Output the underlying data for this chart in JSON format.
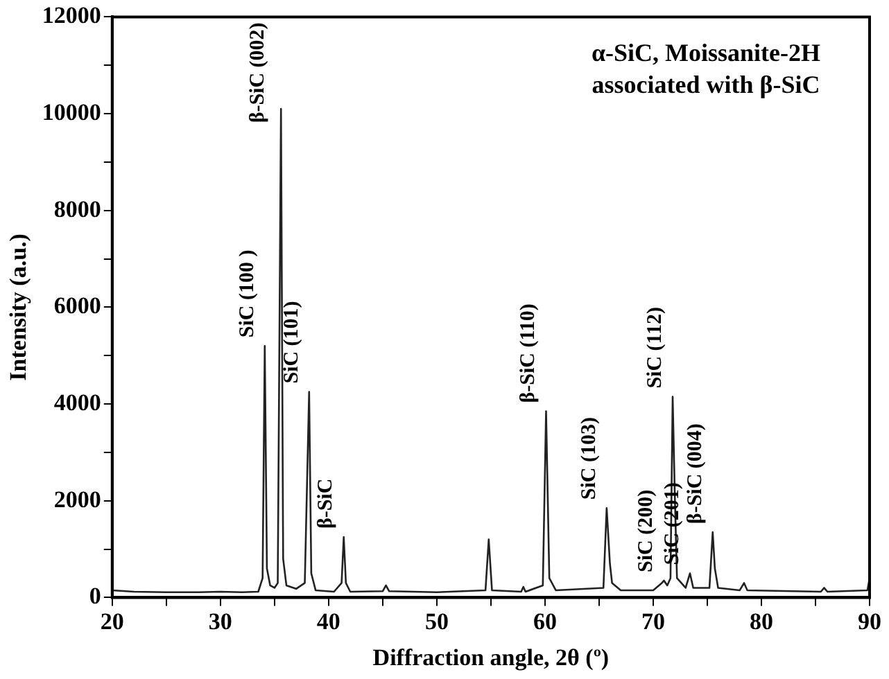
{
  "chart_data": {
    "type": "line",
    "xlabel": "Diffraction angle, 2θ (º)",
    "ylabel": "Intensity (a.u.)",
    "xlim": [
      20,
      90
    ],
    "ylim": [
      0,
      12000
    ],
    "xticks": [
      20,
      {
        "value": 25,
        "label": null
      },
      30,
      {
        "value": 35,
        "label": null
      },
      40,
      {
        "value": 45,
        "label": null
      },
      50,
      {
        "value": 55,
        "label": null
      },
      60,
      {
        "value": 65,
        "label": null
      },
      70,
      {
        "value": 75,
        "label": null
      },
      80,
      {
        "value": 85,
        "label": null
      },
      90
    ],
    "yticks": [
      0,
      {
        "value": 1000,
        "label": null
      },
      2000,
      {
        "value": 3000,
        "label": null
      },
      4000,
      {
        "value": 5000,
        "label": null
      },
      6000,
      {
        "value": 7000,
        "label": null
      },
      8000,
      {
        "value": 9000,
        "label": null
      },
      10000,
      {
        "value": 11000,
        "label": null
      },
      12000
    ],
    "grid": false,
    "legend": false,
    "marker": "none",
    "line_style": "solid",
    "series": [
      {
        "color": "#222222",
        "x": [
          20,
          22,
          25,
          28,
          30,
          32,
          33.5,
          33.9,
          34.1,
          34.3,
          34.6,
          35.0,
          35.3,
          35.6,
          35.8,
          36.1,
          37,
          37.8,
          38.2,
          38.4,
          38.8,
          40.5,
          41.2,
          41.4,
          41.6,
          42,
          45,
          45.3,
          45.6,
          50,
          54.5,
          54.8,
          55.1,
          57.8,
          58.0,
          58.2,
          59.8,
          60.1,
          60.4,
          61,
          65.4,
          65.7,
          66.0,
          66.2,
          67,
          70,
          70.8,
          71.0,
          71.3,
          71.6,
          71.8,
          72.0,
          72.2,
          73,
          73.4,
          73.7,
          75.2,
          75.5,
          75.7,
          76,
          78,
          78.4,
          78.7,
          85.5,
          85.8,
          86.1,
          89.8,
          90
        ],
        "values": [
          150,
          120,
          110,
          110,
          120,
          110,
          120,
          400,
          5200,
          600,
          250,
          200,
          300,
          10100,
          800,
          250,
          180,
          300,
          4250,
          500,
          150,
          120,
          300,
          1250,
          300,
          120,
          130,
          250,
          130,
          110,
          150,
          1200,
          150,
          120,
          220,
          120,
          250,
          3850,
          400,
          150,
          200,
          1850,
          700,
          300,
          150,
          150,
          300,
          350,
          250,
          400,
          4150,
          2100,
          400,
          200,
          500,
          200,
          200,
          1350,
          600,
          200,
          150,
          300,
          150,
          120,
          200,
          120,
          150,
          400
        ]
      }
    ],
    "annotations": [
      {
        "text": "SiC (100 )",
        "x": 34.1,
        "y": 5200
      },
      {
        "text": "β-SiC (002)",
        "x": 35.6,
        "y": 10100
      },
      {
        "text": "SiC (101)",
        "x": 38.2,
        "y": 4250
      },
      {
        "text": "β-SiC",
        "x": 41.4,
        "y": 1250
      },
      {
        "text": "β-SiC (110)",
        "x": 60.1,
        "y": 3850
      },
      {
        "text": "SiC (103)",
        "x": 65.7,
        "y": 1850
      },
      {
        "text": "SiC (200)",
        "x": 71.0,
        "y": 350
      },
      {
        "text": "SiC (112)",
        "x": 71.8,
        "y": 4150
      },
      {
        "text": "SiC (201)",
        "x": 73.4,
        "y": 500
      },
      {
        "text": "β-SiC (004)",
        "x": 75.5,
        "y": 1350
      },
      "α-SiC, Moissanite-2H",
      "associated with β-SiC"
    ]
  }
}
